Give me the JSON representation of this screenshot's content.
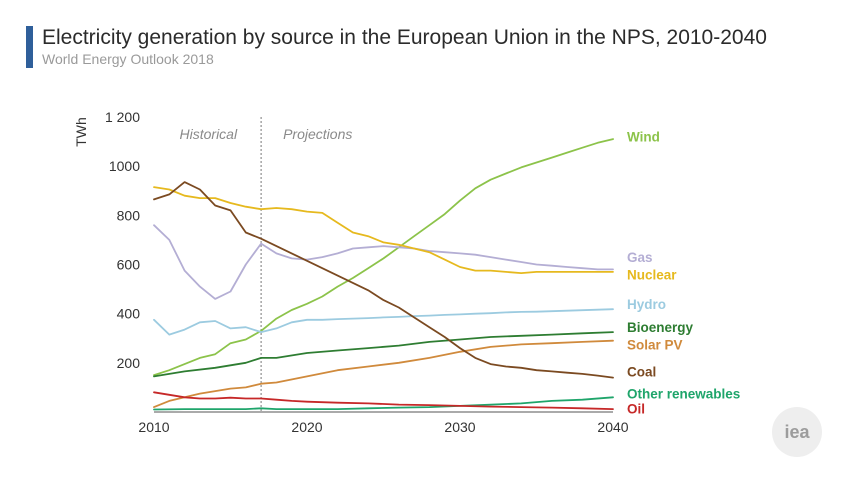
{
  "header": {
    "title": "Electricity generation by source in the European Union in the NPS, 2010-2040",
    "subtitle": "World Energy Outlook 2018",
    "accent_color": "#2f5f9a"
  },
  "logo": {
    "text": "iea"
  },
  "chart_data": {
    "type": "line",
    "title": "Electricity generation by source in the European Union in the NPS, 2010-2040",
    "subtitle": "World Energy Outlook 2018",
    "xlabel": "",
    "ylabel": "TWh",
    "xlim": [
      2010,
      2040
    ],
    "ylim": [
      0,
      1200
    ],
    "xticks": [
      {
        "value": 2010,
        "label": "2010"
      },
      {
        "value": 2020,
        "label": "2020"
      },
      {
        "value": 2030,
        "label": "2030"
      },
      {
        "value": 2040,
        "label": "2040"
      }
    ],
    "yticks": [
      {
        "value": 200,
        "label": "200"
      },
      {
        "value": 400,
        "label": "400"
      },
      {
        "value": 600,
        "label": "600"
      },
      {
        "value": 800,
        "label": "800"
      },
      {
        "value": 1000,
        "label": "1000"
      },
      {
        "value": 1200,
        "label": "1 200"
      }
    ],
    "grid": false,
    "divider": {
      "x": 2017,
      "left_label": "Historical",
      "right_label": "Projections"
    },
    "legend_placement": "right, labels at line ends",
    "series": [
      {
        "name": "Wind",
        "color": "#8cc34a",
        "label_value": 1120,
        "x": [
          2010,
          2011,
          2012,
          2013,
          2014,
          2015,
          2016,
          2017,
          2018,
          2019,
          2020,
          2021,
          2022,
          2023,
          2024,
          2025,
          2026,
          2027,
          2028,
          2029,
          2030,
          2031,
          2032,
          2033,
          2034,
          2035,
          2036,
          2037,
          2038,
          2039,
          2040
        ],
        "y": [
          150,
          170,
          195,
          220,
          235,
          280,
          295,
          330,
          380,
          415,
          440,
          470,
          510,
          545,
          585,
          625,
          670,
          715,
          760,
          805,
          860,
          910,
          945,
          970,
          995,
          1015,
          1035,
          1055,
          1075,
          1095,
          1110
        ]
      },
      {
        "name": "Gas",
        "color": "#b4aed4",
        "label_value": 630,
        "x": [
          2010,
          2011,
          2012,
          2013,
          2014,
          2015,
          2016,
          2017,
          2018,
          2019,
          2020,
          2021,
          2022,
          2023,
          2024,
          2025,
          2026,
          2027,
          2028,
          2029,
          2030,
          2031,
          2032,
          2033,
          2034,
          2035,
          2036,
          2037,
          2038,
          2039,
          2040
        ],
        "y": [
          760,
          700,
          575,
          510,
          460,
          490,
          600,
          685,
          645,
          625,
          620,
          630,
          645,
          665,
          670,
          675,
          670,
          665,
          655,
          650,
          645,
          640,
          630,
          620,
          610,
          600,
          595,
          590,
          585,
          580,
          580
        ]
      },
      {
        "name": "Nuclear",
        "color": "#e6b91e",
        "label_value": 560,
        "x": [
          2010,
          2011,
          2012,
          2013,
          2014,
          2015,
          2016,
          2017,
          2018,
          2019,
          2020,
          2021,
          2022,
          2023,
          2024,
          2025,
          2026,
          2027,
          2028,
          2029,
          2030,
          2031,
          2032,
          2033,
          2034,
          2035,
          2036,
          2037,
          2038,
          2039,
          2040
        ],
        "y": [
          915,
          905,
          880,
          870,
          870,
          850,
          835,
          825,
          830,
          825,
          815,
          810,
          770,
          730,
          715,
          690,
          680,
          665,
          650,
          620,
          590,
          575,
          575,
          570,
          565,
          570,
          570,
          570,
          570,
          570,
          570
        ]
      },
      {
        "name": "Hydro",
        "color": "#9ccbe0",
        "label_value": 440,
        "x": [
          2010,
          2011,
          2012,
          2013,
          2014,
          2015,
          2016,
          2017,
          2018,
          2019,
          2020,
          2021,
          2022,
          2023,
          2024,
          2025,
          2026,
          2027,
          2028,
          2029,
          2030,
          2031,
          2032,
          2033,
          2034,
          2035,
          2036,
          2037,
          2038,
          2039,
          2040
        ],
        "y": [
          375,
          315,
          335,
          365,
          370,
          340,
          345,
          325,
          340,
          365,
          375,
          375,
          378,
          380,
          382,
          385,
          387,
          390,
          392,
          395,
          397,
          400,
          402,
          405,
          407,
          408,
          410,
          412,
          414,
          416,
          418
        ]
      },
      {
        "name": "Bioenergy",
        "color": "#2e7d32",
        "label_value": 345,
        "x": [
          2010,
          2012,
          2014,
          2016,
          2017,
          2018,
          2020,
          2022,
          2024,
          2026,
          2028,
          2030,
          2032,
          2034,
          2036,
          2038,
          2040
        ],
        "y": [
          145,
          165,
          180,
          200,
          220,
          220,
          240,
          250,
          260,
          270,
          285,
          295,
          305,
          310,
          315,
          320,
          325
        ]
      },
      {
        "name": "Solar PV",
        "color": "#d08a3c",
        "label_value": 275,
        "x": [
          2010,
          2011,
          2012,
          2013,
          2014,
          2015,
          2016,
          2017,
          2018,
          2020,
          2022,
          2024,
          2026,
          2028,
          2030,
          2032,
          2034,
          2036,
          2038,
          2040
        ],
        "y": [
          20,
          45,
          60,
          75,
          85,
          95,
          100,
          115,
          120,
          145,
          170,
          185,
          200,
          220,
          245,
          265,
          275,
          280,
          285,
          290
        ]
      },
      {
        "name": "Coal",
        "color": "#7b4a21",
        "label_value": 165,
        "x": [
          2010,
          2011,
          2012,
          2013,
          2014,
          2015,
          2016,
          2017,
          2018,
          2019,
          2020,
          2021,
          2022,
          2023,
          2024,
          2025,
          2026,
          2027,
          2028,
          2029,
          2030,
          2031,
          2032,
          2033,
          2034,
          2035,
          2036,
          2037,
          2038,
          2039,
          2040
        ],
        "y": [
          865,
          885,
          935,
          905,
          840,
          820,
          730,
          705,
          675,
          645,
          615,
          585,
          555,
          525,
          495,
          455,
          425,
          385,
          345,
          305,
          260,
          220,
          195,
          185,
          180,
          170,
          165,
          160,
          155,
          148,
          140
        ]
      },
      {
        "name": "Other renewables",
        "color": "#1fa56b",
        "label_value": 75,
        "x": [
          2010,
          2012,
          2014,
          2016,
          2017,
          2018,
          2020,
          2022,
          2024,
          2026,
          2028,
          2030,
          2032,
          2034,
          2036,
          2038,
          2040
        ],
        "y": [
          10,
          12,
          12,
          12,
          15,
          12,
          12,
          12,
          15,
          18,
          20,
          25,
          30,
          35,
          45,
          50,
          60
        ]
      },
      {
        "name": "Oil",
        "color": "#c62828",
        "label_value": 15,
        "x": [
          2010,
          2011,
          2012,
          2013,
          2014,
          2015,
          2016,
          2017,
          2018,
          2019,
          2020,
          2022,
          2024,
          2026,
          2028,
          2030,
          2032,
          2034,
          2036,
          2038,
          2040
        ],
        "y": [
          80,
          70,
          60,
          55,
          55,
          58,
          55,
          55,
          50,
          45,
          42,
          38,
          35,
          30,
          28,
          25,
          22,
          20,
          18,
          15,
          12
        ]
      }
    ]
  }
}
